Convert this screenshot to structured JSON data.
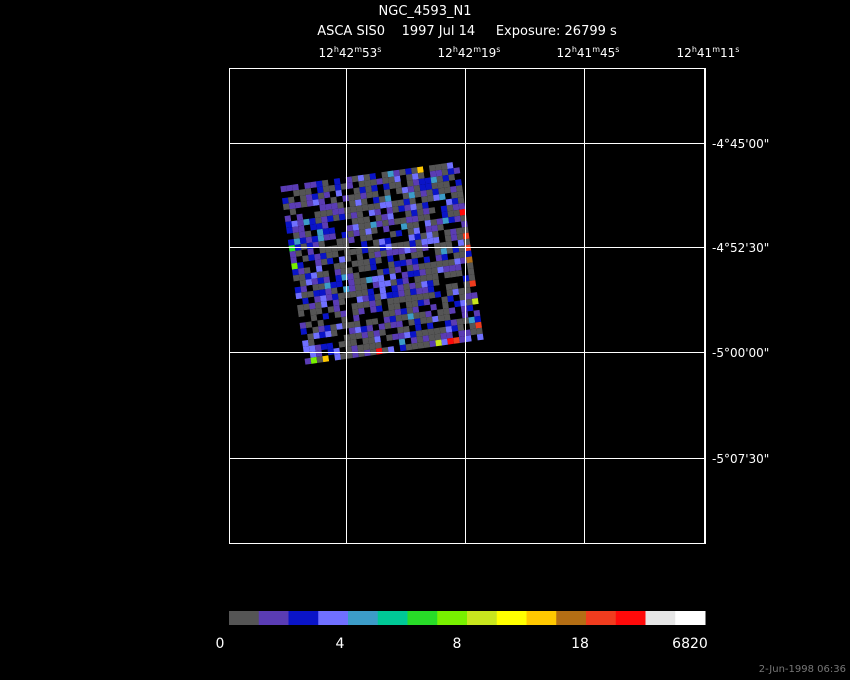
{
  "header": {
    "title": "NGC_4593_N1",
    "subtitle": "ASCA SIS0    1997 Jul 14     Exposure: 26799 s"
  },
  "ra_labels": [
    [
      "12",
      "h",
      "42",
      "m",
      "53",
      "s"
    ],
    [
      "12",
      "h",
      "42",
      "m",
      "19",
      "s"
    ],
    [
      "12",
      "h",
      "41",
      "m",
      "45",
      "s"
    ],
    [
      "12",
      "h",
      "41",
      "m",
      "11",
      "s"
    ]
  ],
  "dec_labels": [
    "-4°45'00\"",
    "-4°52'30\"",
    "-5°00'00\"",
    "-5°07'30\""
  ],
  "colorbar": {
    "colors": [
      "#555555",
      "#5a3cb4",
      "#0a14c8",
      "#7070ff",
      "#3c9cc8",
      "#00c896",
      "#28dc28",
      "#78f000",
      "#c8e61e",
      "#ffff00",
      "#ffc800",
      "#b46e14",
      "#f03c1e",
      "#ff0a0a",
      "#e6e6e6",
      "#ffffff"
    ],
    "labels": [
      0,
      4,
      8,
      18,
      6820
    ]
  },
  "footer": {
    "timestamp": "2-Jun-1998 06:36"
  }
}
